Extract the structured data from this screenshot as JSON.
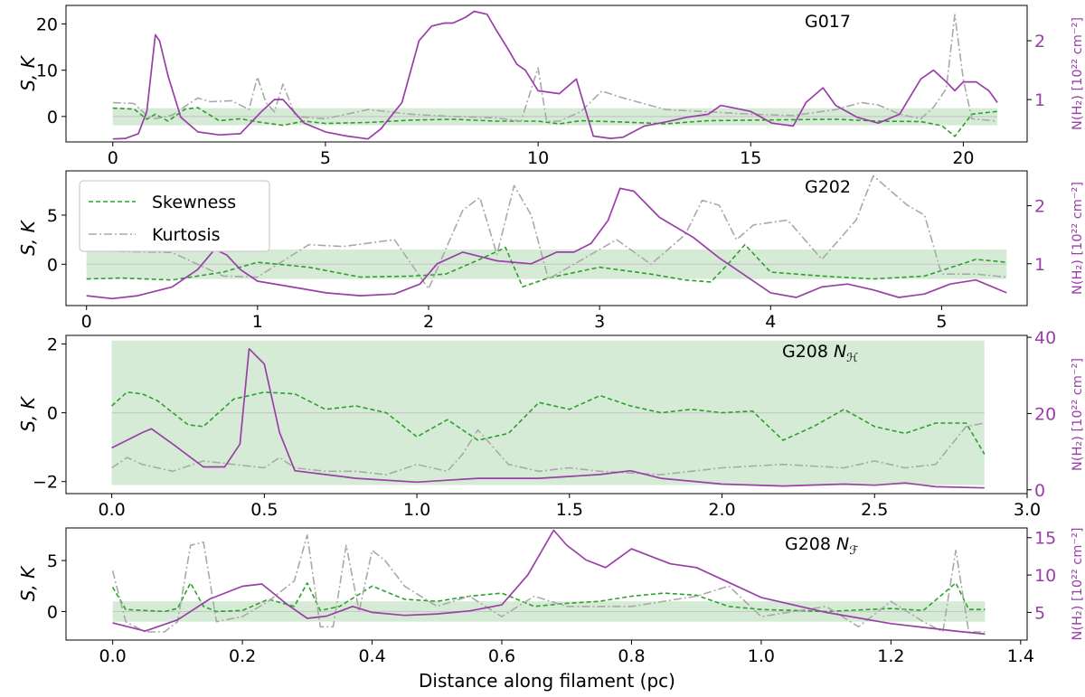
{
  "colors": {
    "skewness": "#2ca02c",
    "kurtosis": "#a9a9a9",
    "nh2": "#9a3fa8",
    "band": "#cfe8cf",
    "zero_line": "#c8c8c8"
  },
  "legend": {
    "skewness": "Skewness",
    "kurtosis": "Kurtosis"
  },
  "xlabel": "Distance along filament (pc)",
  "chart_data": [
    {
      "type": "line",
      "label": "G017",
      "ylabel": "S, K",
      "ylabel_right": "N(H₂) [10²² cm⁻²]",
      "xlim": [
        -1.1,
        21.5
      ],
      "ylim": [
        -5.5,
        24
      ],
      "ylim_right": [
        0.28,
        2.6
      ],
      "xticks": [
        0,
        5,
        10,
        15,
        20
      ],
      "yticks": [
        0,
        10,
        20
      ],
      "yticks_right": [
        1,
        2
      ],
      "band": [
        -1.9,
        1.8
      ],
      "x_end": 20.8,
      "series": [
        {
          "name": "Skewness",
          "x": [
            0,
            0.5,
            0.8,
            1.0,
            1.3,
            1.7,
            2.0,
            2.5,
            3.0,
            3.5,
            4.0,
            4.5,
            5.0,
            6.0,
            7.0,
            8.0,
            9.0,
            10.0,
            10.5,
            11.0,
            12.0,
            13.0,
            14.0,
            15.0,
            16.0,
            17.0,
            18.0,
            19.0,
            19.5,
            19.8,
            20.2,
            20.8
          ],
          "y": [
            1.8,
            1.6,
            -0.6,
            0.5,
            -1.0,
            1.6,
            1.9,
            -0.9,
            -0.5,
            -1.3,
            -1.9,
            -1.0,
            -1.5,
            -1.3,
            -0.8,
            -0.6,
            -1.0,
            -1.0,
            -1.6,
            -0.9,
            -1.2,
            -1.6,
            -0.9,
            -0.8,
            -0.7,
            -0.6,
            -1.0,
            -1.1,
            -2.0,
            -4.3,
            0.5,
            1.1
          ]
        },
        {
          "name": "Kurtosis",
          "x": [
            0,
            0.5,
            0.8,
            1.0,
            1.4,
            1.8,
            2.0,
            2.3,
            2.8,
            3.2,
            3.4,
            3.6,
            3.8,
            4.0,
            4.3,
            5.0,
            6.0,
            7.0,
            8.0,
            9.0,
            9.6,
            10.0,
            10.2,
            10.5,
            11.0,
            11.5,
            12.0,
            13.0,
            14.0,
            15.0,
            16.0,
            17.0,
            17.6,
            18.0,
            18.5,
            19.0,
            19.3,
            19.6,
            19.8,
            20.0,
            20.2,
            20.8
          ],
          "y": [
            3.0,
            2.8,
            0.2,
            -0.5,
            0.3,
            2.8,
            4.0,
            3.2,
            3.4,
            1.5,
            8.5,
            3.0,
            1.0,
            7.0,
            0.0,
            -0.5,
            1.5,
            0.5,
            0.0,
            -0.3,
            -1.0,
            10.5,
            -1.0,
            -1.0,
            1.0,
            5.5,
            4.0,
            1.5,
            1.0,
            0.5,
            0.2,
            1.5,
            3.0,
            2.5,
            0.5,
            -0.5,
            2.0,
            6.0,
            22.0,
            8.0,
            -0.5,
            -1.0
          ]
        },
        {
          "name": "N(H2)",
          "x": [
            0,
            0.3,
            0.6,
            0.8,
            1.0,
            1.1,
            1.3,
            1.6,
            2.0,
            2.5,
            3.0,
            3.5,
            3.8,
            4.0,
            4.5,
            5.0,
            5.5,
            6.0,
            6.3,
            6.8,
            7.2,
            7.5,
            7.8,
            8.0,
            8.3,
            8.5,
            8.8,
            9.0,
            9.3,
            9.5,
            9.7,
            10.0,
            10.5,
            10.9,
            11.3,
            11.7,
            12.0,
            12.5,
            13.0,
            13.5,
            14.0,
            14.3,
            15.0,
            15.5,
            16.0,
            16.3,
            16.7,
            17.0,
            17.5,
            18.0,
            18.5,
            19.0,
            19.3,
            19.6,
            19.8,
            20.0,
            20.3,
            20.6,
            20.8
          ],
          "y": [
            0.33,
            0.34,
            0.42,
            0.8,
            2.1,
            2.0,
            1.4,
            0.7,
            0.45,
            0.4,
            0.42,
            0.8,
            1.0,
            1.0,
            0.6,
            0.45,
            0.38,
            0.33,
            0.5,
            0.95,
            2.0,
            2.25,
            2.3,
            2.3,
            2.4,
            2.5,
            2.45,
            2.2,
            1.85,
            1.6,
            1.5,
            1.15,
            1.1,
            1.35,
            0.38,
            0.34,
            0.36,
            0.55,
            0.62,
            0.7,
            0.75,
            0.9,
            0.8,
            0.6,
            0.55,
            0.95,
            1.2,
            0.9,
            0.7,
            0.6,
            0.75,
            1.35,
            1.5,
            1.3,
            1.15,
            1.3,
            1.3,
            1.15,
            0.95
          ]
        }
      ]
    },
    {
      "type": "line",
      "label": "G202",
      "ylabel": "S, K",
      "ylabel_right": "N(H₂) [10²² cm⁻²]",
      "xlim": [
        -0.12,
        5.5
      ],
      "ylim": [
        -4.2,
        9.5
      ],
      "ylim_right": [
        0.28,
        2.6
      ],
      "xticks": [
        0,
        1,
        2,
        3,
        4,
        5
      ],
      "yticks": [
        0,
        5
      ],
      "yticks_right": [
        1,
        2
      ],
      "band": [
        -1.5,
        1.5
      ],
      "x_end": 5.38,
      "series": [
        {
          "name": "Skewness",
          "x": [
            0,
            0.2,
            0.5,
            0.8,
            1.0,
            1.3,
            1.6,
            1.9,
            2.1,
            2.3,
            2.45,
            2.55,
            2.7,
            3.0,
            3.3,
            3.5,
            3.65,
            3.75,
            3.85,
            4.0,
            4.3,
            4.6,
            4.9,
            5.2,
            5.38
          ],
          "y": [
            -1.5,
            -1.4,
            -1.6,
            -0.8,
            0.2,
            -0.3,
            -1.3,
            -1.2,
            -1.0,
            0.5,
            1.7,
            -2.3,
            -1.4,
            -0.3,
            -1.0,
            -1.6,
            -1.8,
            0.0,
            2.0,
            -0.8,
            -1.2,
            -1.5,
            -1.2,
            0.5,
            0.2
          ]
        },
        {
          "name": "Kurtosis",
          "x": [
            0,
            0.2,
            0.5,
            0.8,
            1.0,
            1.3,
            1.5,
            1.8,
            2.0,
            2.2,
            2.3,
            2.4,
            2.5,
            2.6,
            2.7,
            2.9,
            3.1,
            3.3,
            3.5,
            3.6,
            3.7,
            3.8,
            3.9,
            4.1,
            4.3,
            4.5,
            4.6,
            4.8,
            4.9,
            5.0,
            5.2,
            5.38
          ],
          "y": [
            1.5,
            1.3,
            1.2,
            -1.2,
            -1.3,
            2.0,
            1.8,
            2.5,
            -2.5,
            5.5,
            6.8,
            1.0,
            8.0,
            5.0,
            -1.5,
            0.5,
            2.5,
            0.0,
            3.0,
            6.5,
            6.0,
            2.5,
            4.0,
            4.5,
            0.5,
            4.5,
            9.0,
            6.0,
            5.0,
            -1.0,
            -1.0,
            -1.3
          ]
        },
        {
          "name": "N(H2)",
          "x": [
            0,
            0.15,
            0.3,
            0.5,
            0.65,
            0.75,
            0.82,
            0.9,
            1.0,
            1.2,
            1.4,
            1.6,
            1.8,
            1.95,
            2.05,
            2.2,
            2.4,
            2.6,
            2.75,
            2.85,
            2.95,
            3.05,
            3.12,
            3.2,
            3.35,
            3.55,
            3.7,
            3.85,
            4.0,
            4.15,
            4.3,
            4.45,
            4.6,
            4.75,
            4.9,
            5.05,
            5.2,
            5.38
          ],
          "y": [
            0.45,
            0.4,
            0.45,
            0.6,
            0.9,
            1.25,
            1.15,
            0.9,
            0.7,
            0.6,
            0.5,
            0.45,
            0.48,
            0.65,
            1.0,
            1.2,
            1.05,
            1.0,
            1.2,
            1.2,
            1.35,
            1.75,
            2.3,
            2.25,
            1.8,
            1.45,
            1.1,
            0.8,
            0.5,
            0.42,
            0.6,
            0.65,
            0.55,
            0.42,
            0.48,
            0.65,
            0.72,
            0.5
          ]
        }
      ]
    },
    {
      "type": "line",
      "label": "G208 N_H",
      "ylabel": "S, K",
      "ylabel_right": "N(H₂) [10²² cm⁻²]",
      "xlim": [
        -0.15,
        3.0
      ],
      "ylim": [
        -2.35,
        2.25
      ],
      "ylim_right": [
        -1.0,
        40.5
      ],
      "xticks": [
        0.0,
        0.5,
        1.0,
        1.5,
        2.0,
        2.5,
        3.0
      ],
      "yticks": [
        -2,
        0,
        2
      ],
      "yticks_right": [
        0,
        20,
        40
      ],
      "band": [
        -2.1,
        2.1
      ],
      "x_end": 2.86,
      "series": [
        {
          "name": "Skewness",
          "x": [
            0,
            0.05,
            0.1,
            0.15,
            0.2,
            0.25,
            0.3,
            0.4,
            0.5,
            0.6,
            0.7,
            0.8,
            0.9,
            1.0,
            1.1,
            1.2,
            1.3,
            1.4,
            1.5,
            1.6,
            1.7,
            1.8,
            1.9,
            2.0,
            2.1,
            2.2,
            2.3,
            2.4,
            2.5,
            2.6,
            2.7,
            2.8,
            2.86
          ],
          "y": [
            0.2,
            0.6,
            0.55,
            0.35,
            0.0,
            -0.35,
            -0.4,
            0.4,
            0.6,
            0.55,
            0.1,
            0.2,
            0.0,
            -0.7,
            -0.2,
            -0.8,
            -0.6,
            0.3,
            0.1,
            0.5,
            0.2,
            0.0,
            0.1,
            0.0,
            0.05,
            -0.8,
            -0.4,
            0.1,
            -0.4,
            -0.6,
            -0.3,
            -0.3,
            -1.2
          ]
        },
        {
          "name": "Kurtosis",
          "x": [
            0,
            0.05,
            0.1,
            0.2,
            0.3,
            0.4,
            0.5,
            0.55,
            0.6,
            0.7,
            0.8,
            0.9,
            1.0,
            1.1,
            1.15,
            1.2,
            1.3,
            1.4,
            1.5,
            1.6,
            1.8,
            2.0,
            2.2,
            2.4,
            2.5,
            2.6,
            2.7,
            2.8,
            2.86
          ],
          "y": [
            -1.6,
            -1.3,
            -1.5,
            -1.7,
            -1.4,
            -1.5,
            -1.6,
            -1.3,
            -1.6,
            -1.7,
            -1.7,
            -1.8,
            -1.5,
            -1.7,
            -1.2,
            -0.5,
            -1.5,
            -1.7,
            -1.6,
            -1.7,
            -1.8,
            -1.6,
            -1.5,
            -1.6,
            -1.4,
            -1.6,
            -1.5,
            -0.4,
            -0.3
          ]
        },
        {
          "name": "N(H2)",
          "x": [
            0,
            0.05,
            0.1,
            0.13,
            0.2,
            0.3,
            0.37,
            0.42,
            0.45,
            0.5,
            0.55,
            0.6,
            0.7,
            0.8,
            1.0,
            1.2,
            1.4,
            1.6,
            1.7,
            1.8,
            2.0,
            2.2,
            2.4,
            2.5,
            2.6,
            2.7,
            2.86
          ],
          "y": [
            11,
            13,
            15,
            16,
            12,
            6,
            6,
            12,
            37,
            33,
            15,
            5,
            4,
            3,
            2,
            3,
            3,
            4,
            5,
            3,
            1.5,
            1,
            1.5,
            1.2,
            1.8,
            0.8,
            0.5
          ]
        }
      ]
    },
    {
      "type": "line",
      "label": "G208 N_F",
      "ylabel": "S, K",
      "ylabel_right": "N(H₂) [10²² cm⁻²]",
      "xlim": [
        -0.072,
        1.41
      ],
      "ylim": [
        -2.8,
        8.2
      ],
      "ylim_right": [
        1.3,
        16.3
      ],
      "xticks": [
        0.0,
        0.2,
        0.4,
        0.6,
        0.8,
        1.0,
        1.2,
        1.4
      ],
      "yticks": [
        0,
        5
      ],
      "yticks_right": [
        5,
        10,
        15
      ],
      "band": [
        -1.0,
        1.0
      ],
      "x_end": 1.345,
      "series": [
        {
          "name": "Skewness",
          "x": [
            0,
            0.02,
            0.05,
            0.08,
            0.1,
            0.12,
            0.14,
            0.16,
            0.2,
            0.24,
            0.28,
            0.3,
            0.32,
            0.35,
            0.4,
            0.45,
            0.5,
            0.55,
            0.6,
            0.65,
            0.7,
            0.75,
            0.8,
            0.85,
            0.9,
            0.95,
            1.0,
            1.1,
            1.2,
            1.25,
            1.3,
            1.32,
            1.345
          ],
          "y": [
            2.4,
            0.2,
            0.1,
            0.0,
            0.3,
            2.8,
            0.5,
            0.0,
            0.1,
            1.2,
            0.5,
            2.8,
            0.1,
            0.5,
            2.5,
            1.2,
            1.0,
            1.5,
            1.8,
            0.5,
            0.8,
            1.0,
            1.5,
            1.8,
            1.6,
            0.5,
            0.2,
            0.0,
            0.3,
            0.1,
            2.8,
            0.2,
            0.2
          ]
        },
        {
          "name": "Kurtosis",
          "x": [
            0,
            0.02,
            0.05,
            0.08,
            0.1,
            0.12,
            0.14,
            0.16,
            0.2,
            0.24,
            0.28,
            0.3,
            0.32,
            0.34,
            0.36,
            0.38,
            0.4,
            0.42,
            0.45,
            0.5,
            0.55,
            0.6,
            0.65,
            0.7,
            0.8,
            0.9,
            0.95,
            1.0,
            1.1,
            1.15,
            1.2,
            1.25,
            1.28,
            1.3,
            1.32,
            1.345
          ],
          "y": [
            4.0,
            -1.0,
            -2.0,
            -2.0,
            -1.0,
            6.5,
            6.8,
            -1.0,
            -0.5,
            1.0,
            3.0,
            7.5,
            -1.5,
            -1.5,
            6.5,
            0.0,
            6.0,
            5.0,
            2.5,
            0.5,
            1.5,
            -0.5,
            1.5,
            0.5,
            0.5,
            1.5,
            2.5,
            -0.5,
            0.5,
            -1.5,
            1.0,
            -1.0,
            -2.0,
            6.0,
            -2.0,
            -2.0
          ]
        },
        {
          "name": "N(H2)",
          "x": [
            0,
            0.05,
            0.1,
            0.15,
            0.2,
            0.23,
            0.27,
            0.3,
            0.33,
            0.37,
            0.4,
            0.45,
            0.5,
            0.55,
            0.6,
            0.64,
            0.68,
            0.7,
            0.73,
            0.76,
            0.8,
            0.83,
            0.86,
            0.9,
            0.95,
            1.0,
            1.1,
            1.2,
            1.3,
            1.345
          ],
          "y": [
            3.6,
            2.5,
            4.0,
            6.8,
            8.5,
            8.8,
            6.0,
            4.2,
            4.5,
            5.8,
            5.0,
            4.6,
            4.8,
            5.2,
            6.0,
            10.0,
            16.0,
            14.0,
            12.0,
            11.0,
            13.5,
            12.5,
            11.5,
            11.0,
            9.0,
            7.0,
            5.0,
            3.5,
            2.5,
            2.1
          ]
        }
      ]
    }
  ]
}
